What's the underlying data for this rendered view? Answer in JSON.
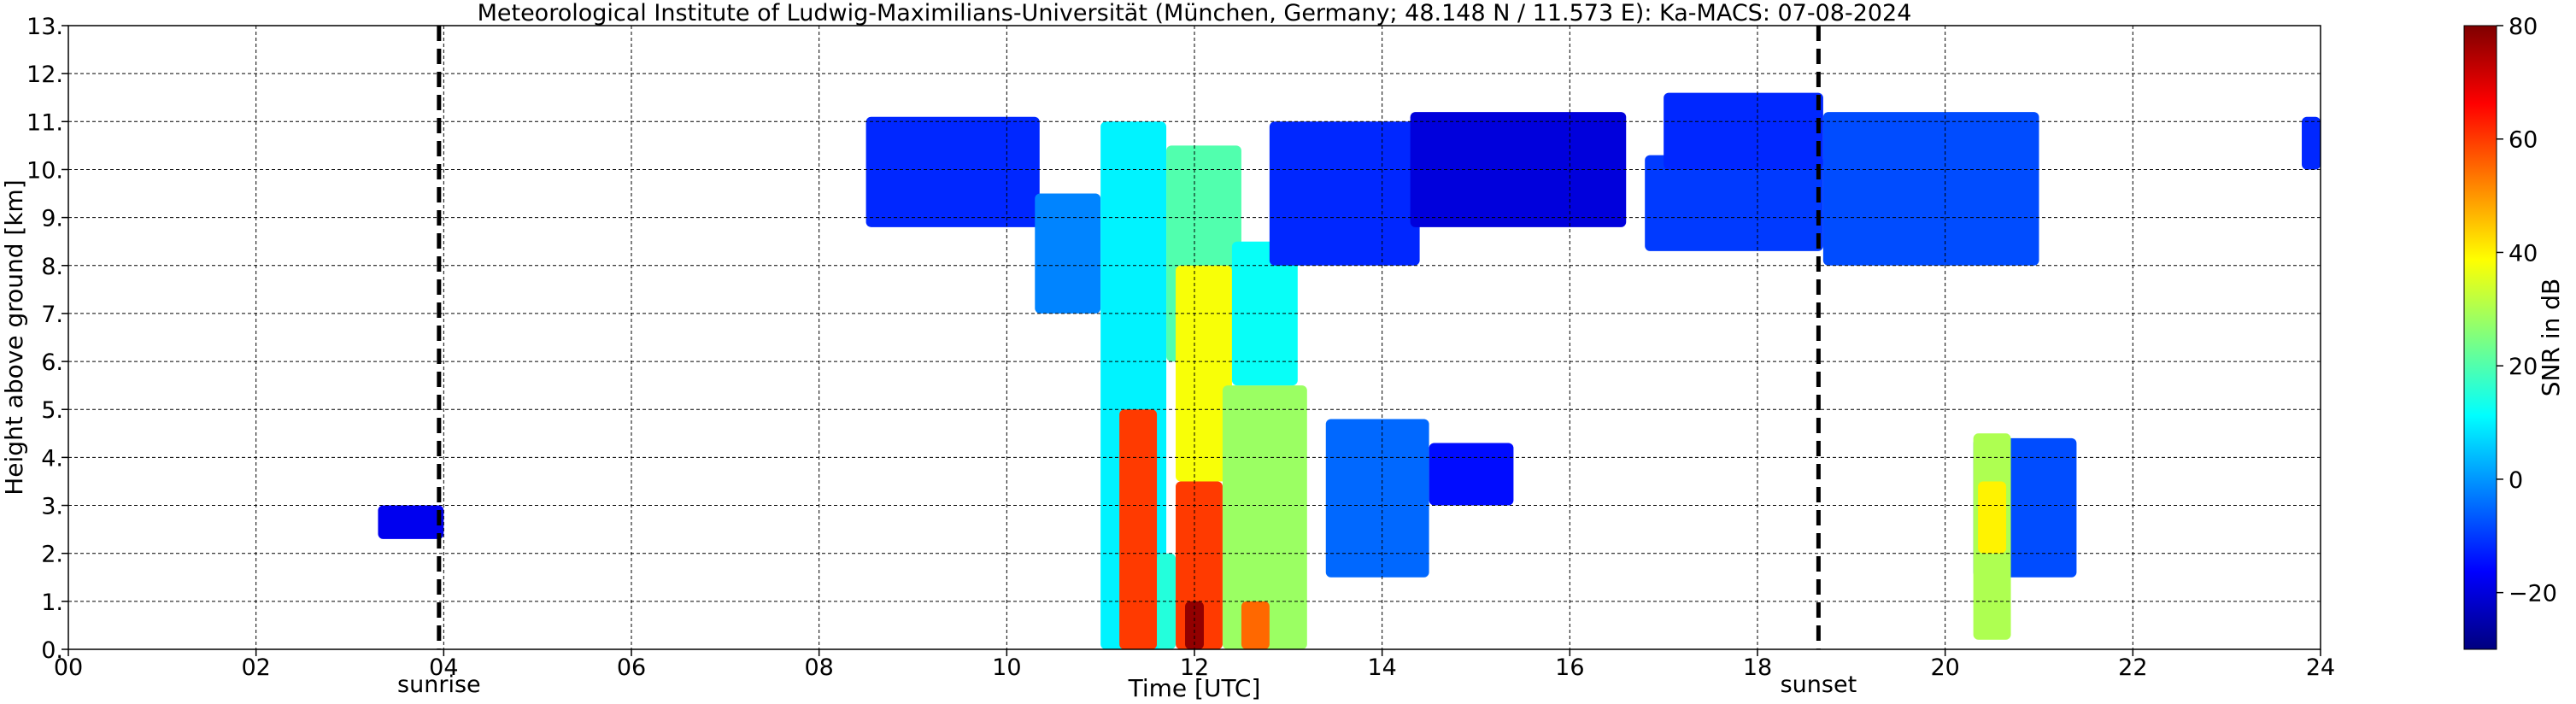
{
  "chart_data": {
    "type": "heatmap",
    "title": "Meteorological Institute of Ludwig-Maximilians-Universität (München, Germany; 48.148 N / 11.573 E):    Ka-MACS: 07-08-2024",
    "xlabel": "Time [UTC]",
    "ylabel": "Height above ground [km]",
    "xlim": [
      0,
      24
    ],
    "ylim": [
      0,
      13
    ],
    "x_tick_labels": [
      "00",
      "02",
      "04",
      "06",
      "08",
      "10",
      "12",
      "14",
      "16",
      "18",
      "20",
      "22",
      "24"
    ],
    "y_tick_labels": [
      "0.",
      "1.",
      "2.",
      "3.",
      "4.",
      "5.",
      "6.",
      "7.",
      "8.",
      "9.",
      "10.",
      "11.",
      "12.",
      "13."
    ],
    "grid": true,
    "markers": [
      {
        "label": "sunrise",
        "time": 3.95
      },
      {
        "label": "sunset",
        "time": 18.65
      }
    ],
    "colorbar": {
      "label": "SNR in dB",
      "range": [
        -30,
        80
      ],
      "tick_labels": [
        "−20",
        "0",
        "20",
        "40",
        "60",
        "80"
      ],
      "colors": [
        "#00007f",
        "#0000ff",
        "#007fff",
        "#00ffff",
        "#7fff7f",
        "#ffff00",
        "#ff7f00",
        "#ff0000",
        "#7f0000"
      ]
    },
    "echoes": [
      {
        "t0": 8.5,
        "t1": 10.35,
        "h0": 8.8,
        "h1": 11.1,
        "snr": -12
      },
      {
        "t0": 10.3,
        "t1": 11.0,
        "h0": 7.0,
        "h1": 9.5,
        "snr": -2
      },
      {
        "t0": 11.0,
        "t1": 11.7,
        "h0": 0,
        "h1": 11.0,
        "snr": 10
      },
      {
        "t0": 11.2,
        "t1": 11.6,
        "h0": 0,
        "h1": 5.0,
        "snr": 60
      },
      {
        "t0": 11.6,
        "t1": 11.8,
        "h0": 0,
        "h1": 2.0,
        "snr": 15
      },
      {
        "t0": 11.7,
        "t1": 12.5,
        "h0": 6.0,
        "h1": 10.5,
        "snr": 20
      },
      {
        "t0": 11.8,
        "t1": 12.4,
        "h0": 3.5,
        "h1": 8.0,
        "snr": 38
      },
      {
        "t0": 11.8,
        "t1": 12.3,
        "h0": 0,
        "h1": 3.5,
        "snr": 60
      },
      {
        "t0": 11.9,
        "t1": 12.1,
        "h0": 0,
        "h1": 1.0,
        "snr": 78
      },
      {
        "t0": 12.3,
        "t1": 13.2,
        "h0": 0,
        "h1": 5.5,
        "snr": 28
      },
      {
        "t0": 12.5,
        "t1": 12.8,
        "h0": 0,
        "h1": 1.0,
        "snr": 55
      },
      {
        "t0": 12.4,
        "t1": 13.1,
        "h0": 5.5,
        "h1": 8.5,
        "snr": 12
      },
      {
        "t0": 12.8,
        "t1": 14.4,
        "h0": 8.0,
        "h1": 11.0,
        "snr": -12
      },
      {
        "t0": 13.4,
        "t1": 14.5,
        "h0": 1.5,
        "h1": 4.8,
        "snr": -5
      },
      {
        "t0": 14.5,
        "t1": 15.4,
        "h0": 3.0,
        "h1": 4.3,
        "snr": -15
      },
      {
        "t0": 14.3,
        "t1": 16.6,
        "h0": 8.8,
        "h1": 11.2,
        "snr": -20
      },
      {
        "t0": 16.8,
        "t1": 18.7,
        "h0": 8.3,
        "h1": 10.3,
        "snr": -10
      },
      {
        "t0": 17.0,
        "t1": 18.7,
        "h0": 10.0,
        "h1": 11.6,
        "snr": -12
      },
      {
        "t0": 18.7,
        "t1": 21.0,
        "h0": 8.0,
        "h1": 11.2,
        "snr": -8
      },
      {
        "t0": 20.3,
        "t1": 21.4,
        "h0": 1.5,
        "h1": 4.4,
        "snr": -8
      },
      {
        "t0": 20.3,
        "t1": 20.7,
        "h0": 0.2,
        "h1": 4.5,
        "snr": 30
      },
      {
        "t0": 20.35,
        "t1": 20.65,
        "h0": 2.0,
        "h1": 3.5,
        "snr": 40
      },
      {
        "t0": 3.3,
        "t1": 4.0,
        "h0": 2.3,
        "h1": 3.0,
        "snr": -18
      },
      {
        "t0": 23.8,
        "t1": 24.0,
        "h0": 10.0,
        "h1": 11.1,
        "snr": -12
      }
    ]
  }
}
